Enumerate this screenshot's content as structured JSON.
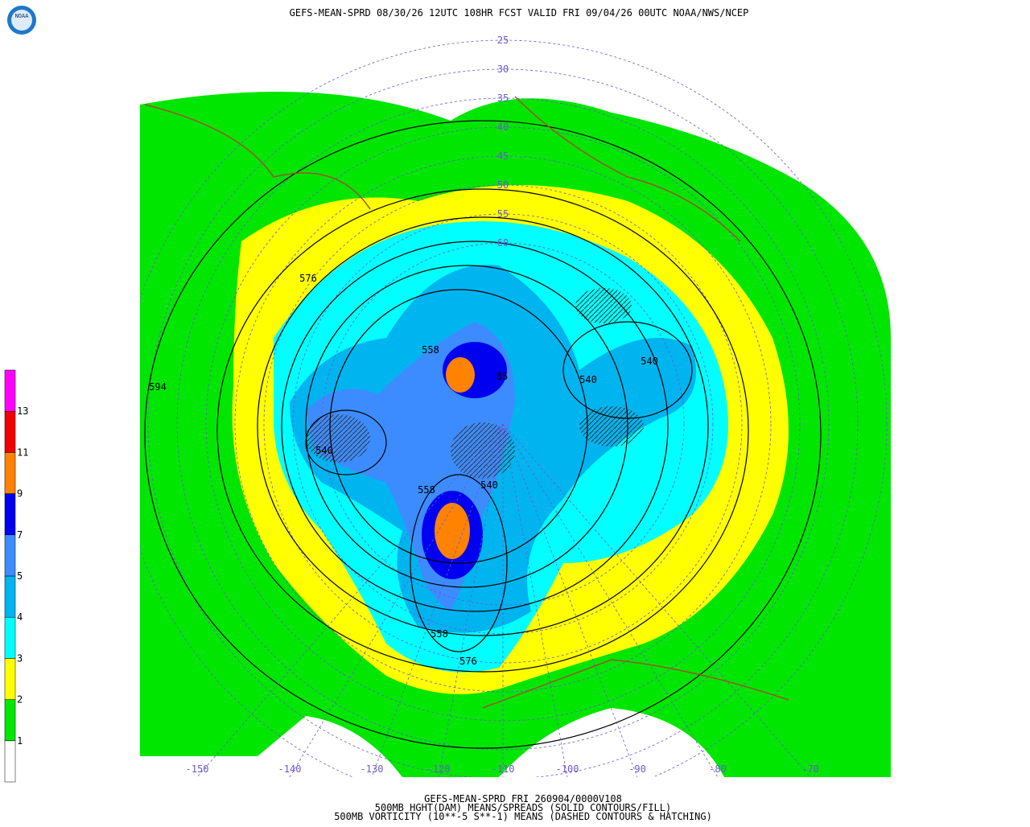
{
  "title": "GEFS-MEAN-SPRD 08/30/26 12UTC 108HR FCST VALID FRI 09/04/26 00UTC NOAA/NWS/NCEP",
  "logo": "NOAA",
  "footer": [
    "GEFS-MEAN-SPRD FRI 260904/0000V108",
    "500MB HGHT(DAM) MEANS/SPREADS (SOLID CONTOURS/FILL)",
    "500MB VORTICITY (10**-5 S**-1) MEANS (DASHED CONTOURS & HATCHING)"
  ],
  "legend": {
    "levels": [
      1,
      2,
      3,
      4,
      5,
      7,
      9,
      11,
      13
    ],
    "colors": [
      "#ffffff",
      "#00e600",
      "#ffff00",
      "#00ffff",
      "#00b4f0",
      "#3c8cff",
      "#0000f0",
      "#ff8200",
      "#f00000",
      "#ff00ff"
    ]
  },
  "latitude_labels": [
    25,
    30,
    35,
    40,
    45,
    50,
    55,
    60
  ],
  "longitude_labels": [
    -150,
    -140,
    -130,
    -120,
    -110,
    -100,
    -90,
    -80,
    -70
  ],
  "contour_labels": [
    "576",
    "594",
    "558",
    "540",
    "558",
    "540",
    "540",
    "540",
    "558",
    "576",
    "85"
  ]
}
